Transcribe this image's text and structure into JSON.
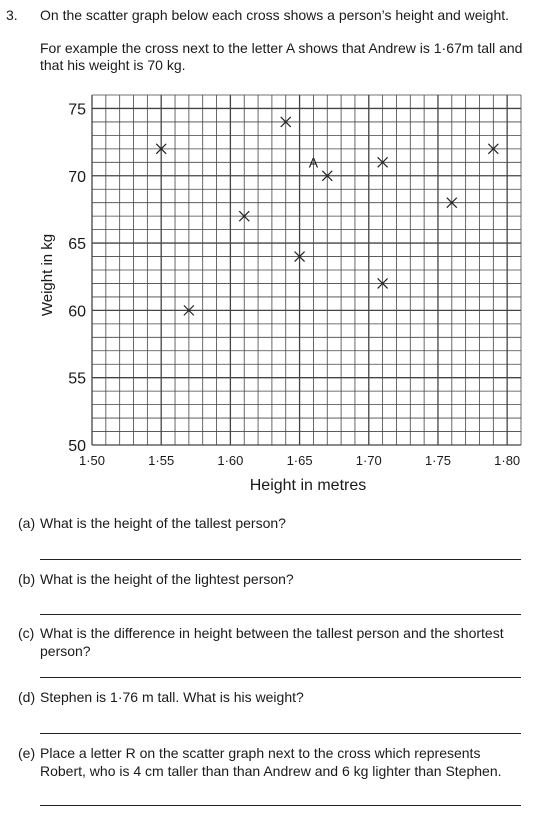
{
  "question": {
    "number": "3.",
    "intro_1": "On the scatter graph below each cross shows a person’s height and weight.",
    "intro_2": "For example the cross next to the letter A shows that Andrew is 1·67m tall and that his weight is 70 kg."
  },
  "chart_data": {
    "type": "scatter",
    "xlabel": "Height in metres",
    "ylabel": "Weight in kg",
    "xlim": [
      1.5,
      1.81
    ],
    "ylim": [
      50,
      76
    ],
    "x_ticks": [
      1.5,
      1.55,
      1.6,
      1.65,
      1.7,
      1.75,
      1.8
    ],
    "x_tick_labels": [
      "1·50",
      "1·55",
      "1·60",
      "1·65",
      "1·70",
      "1·75",
      "1·80"
    ],
    "y_ticks": [
      50,
      55,
      60,
      65,
      70,
      75
    ],
    "y_tick_labels": [
      "50",
      "55",
      "60",
      "65",
      "70",
      "75"
    ],
    "grid": true,
    "grid_minor_step_x": 0.01,
    "grid_minor_step_y": 1,
    "marker": "cross",
    "points": [
      {
        "x": 1.55,
        "y": 72
      },
      {
        "x": 1.57,
        "y": 60
      },
      {
        "x": 1.61,
        "y": 67
      },
      {
        "x": 1.64,
        "y": 74
      },
      {
        "x": 1.65,
        "y": 64
      },
      {
        "x": 1.67,
        "y": 70
      },
      {
        "x": 1.71,
        "y": 71
      },
      {
        "x": 1.71,
        "y": 62
      },
      {
        "x": 1.76,
        "y": 68
      },
      {
        "x": 1.79,
        "y": 72
      }
    ],
    "annotations": [
      {
        "text": "A",
        "x": 1.66,
        "y": 70.6
      }
    ],
    "colors": {
      "grid": "#444444",
      "marker": "#222222"
    }
  },
  "parts": [
    {
      "letter": "(a)",
      "text": "What is the height of the tallest person?"
    },
    {
      "letter": "(b)",
      "text": "What is the height of the lightest person?"
    },
    {
      "letter": "(c)",
      "text": "What is the difference in height between the tallest person and the shortest person?"
    },
    {
      "letter": "(d)",
      "text": "Stephen is 1·76 m tall. What is his weight?"
    },
    {
      "letter": "(e)",
      "text": "Place a letter R on the scatter graph next to the cross which represents Robert, who is 4 cm taller than than Andrew and 6 kg lighter than Stephen."
    }
  ]
}
